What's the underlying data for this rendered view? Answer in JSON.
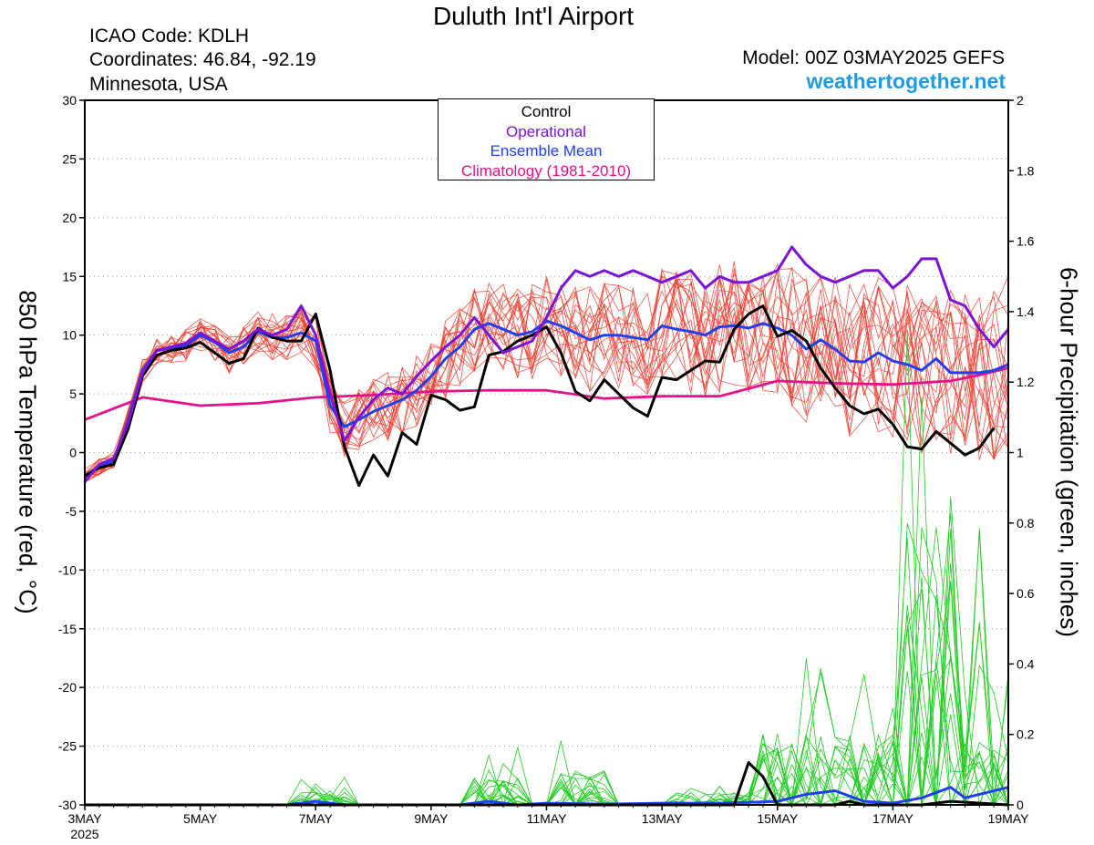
{
  "header": {
    "title": "Duluth Int'l Airport",
    "icao": "ICAO Code: KDLH",
    "coords": "Coordinates: 46.84, -92.19",
    "location": "Minnesota, USA",
    "model": "Model: 00Z 03MAY2025 GEFS",
    "website": "weathertogether.net"
  },
  "legend": {
    "control": "Control",
    "operational": "Operational",
    "mean": "Ensemble Mean",
    "climo": "Climatology (1981-2010)"
  },
  "colors": {
    "control": "#000000",
    "operational": "#7b14d6",
    "mean": "#2040ee",
    "climo": "#e8108a",
    "members_temp": "#ee3a2a",
    "members_precip": "#22cc22",
    "website": "#1e9be8"
  },
  "chart_data": {
    "type": "line",
    "ylabel": "850 hPa Temperature (red, °C)",
    "y2label": "6-hour Precipitation (green, inches)",
    "xlim": [
      0,
      16
    ],
    "ylim": [
      -30,
      30
    ],
    "y2lim": [
      0,
      2
    ],
    "y_ticks": [
      -30,
      -25,
      -20,
      -15,
      -10,
      -5,
      0,
      5,
      10,
      15,
      20,
      25,
      30
    ],
    "y2_ticks": [
      0,
      0.2,
      0.4,
      0.6,
      0.8,
      1,
      1.2,
      1.4,
      1.6,
      1.8,
      2
    ],
    "x_ticks": [
      {
        "day": 0,
        "label": "3MAY",
        "sub": "2025"
      },
      {
        "day": 2,
        "label": "5MAY"
      },
      {
        "day": 4,
        "label": "7MAY"
      },
      {
        "day": 6,
        "label": "9MAY"
      },
      {
        "day": 8,
        "label": "11MAY"
      },
      {
        "day": 10,
        "label": "13MAY"
      },
      {
        "day": 12,
        "label": "15MAY"
      },
      {
        "day": 14,
        "label": "17MAY"
      },
      {
        "day": 16,
        "label": "19MAY"
      }
    ],
    "temperature_series": [
      {
        "name": "Operational",
        "key": "operational",
        "points": [
          [
            0,
            -2.5
          ],
          [
            0.25,
            -1.0
          ],
          [
            0.5,
            -0.5
          ],
          [
            0.75,
            2.5
          ],
          [
            1.0,
            6.8
          ],
          [
            1.25,
            8.7
          ],
          [
            1.5,
            9.0
          ],
          [
            1.75,
            9.3
          ],
          [
            2.0,
            10.2
          ],
          [
            2.25,
            9.5
          ],
          [
            2.5,
            8.8
          ],
          [
            2.75,
            9.5
          ],
          [
            3.0,
            10.5
          ],
          [
            3.25,
            10.0
          ],
          [
            3.5,
            10.5
          ],
          [
            3.75,
            12.5
          ],
          [
            4.0,
            10.0
          ],
          [
            4.25,
            5.0
          ],
          [
            4.5,
            1.0
          ],
          [
            4.75,
            3.0
          ],
          [
            5.0,
            4.5
          ],
          [
            5.25,
            5.5
          ],
          [
            5.5,
            5.0
          ],
          [
            5.75,
            6.5
          ],
          [
            6.0,
            7.8
          ],
          [
            6.25,
            9.0
          ],
          [
            6.5,
            10.0
          ],
          [
            6.75,
            11.5
          ],
          [
            7.0,
            10.0
          ],
          [
            7.25,
            8.5
          ],
          [
            7.5,
            9.0
          ],
          [
            7.75,
            9.5
          ],
          [
            8.0,
            11.5
          ],
          [
            8.25,
            14.0
          ],
          [
            8.5,
            15.5
          ],
          [
            8.75,
            15.0
          ],
          [
            9.0,
            15.5
          ],
          [
            9.25,
            15.0
          ],
          [
            9.5,
            15.5
          ],
          [
            9.75,
            15.0
          ],
          [
            10.0,
            14.5
          ],
          [
            10.25,
            15.0
          ],
          [
            10.5,
            15.5
          ],
          [
            10.75,
            14.0
          ],
          [
            11.0,
            15.0
          ],
          [
            11.25,
            14.5
          ],
          [
            11.5,
            14.5
          ],
          [
            11.75,
            15.0
          ],
          [
            12.0,
            15.5
          ],
          [
            12.25,
            17.5
          ],
          [
            12.5,
            16.0
          ],
          [
            12.75,
            15.0
          ],
          [
            13.0,
            14.5
          ],
          [
            13.25,
            15.0
          ],
          [
            13.5,
            15.5
          ],
          [
            13.75,
            15.5
          ],
          [
            14.0,
            14.0
          ],
          [
            14.25,
            15.0
          ],
          [
            14.5,
            16.5
          ],
          [
            14.75,
            16.5
          ],
          [
            15.0,
            13.0
          ],
          [
            15.25,
            12.5
          ],
          [
            15.5,
            10.5
          ],
          [
            15.75,
            9.0
          ],
          [
            16.0,
            10.5
          ]
        ]
      },
      {
        "name": "Ensemble Mean",
        "key": "mean",
        "points": [
          [
            0,
            -2.0
          ],
          [
            0.25,
            -1.2
          ],
          [
            0.5,
            -0.7
          ],
          [
            0.75,
            2.7
          ],
          [
            1.0,
            7.0
          ],
          [
            1.25,
            8.7
          ],
          [
            1.5,
            8.9
          ],
          [
            1.75,
            9.1
          ],
          [
            2.0,
            10.0
          ],
          [
            2.25,
            9.4
          ],
          [
            2.5,
            8.5
          ],
          [
            2.75,
            9.0
          ],
          [
            3.0,
            10.3
          ],
          [
            3.25,
            9.8
          ],
          [
            3.5,
            9.8
          ],
          [
            3.75,
            10.2
          ],
          [
            4.0,
            9.5
          ],
          [
            4.25,
            4.0
          ],
          [
            4.5,
            2.2
          ],
          [
            4.75,
            2.8
          ],
          [
            5.0,
            3.5
          ],
          [
            5.25,
            4.0
          ],
          [
            5.5,
            4.5
          ],
          [
            5.75,
            5.3
          ],
          [
            6.0,
            6.5
          ],
          [
            6.25,
            8.0
          ],
          [
            6.5,
            9.0
          ],
          [
            6.75,
            10.5
          ],
          [
            7.0,
            11.0
          ],
          [
            7.25,
            10.5
          ],
          [
            7.5,
            10.0
          ],
          [
            7.75,
            10.3
          ],
          [
            8.0,
            11.2
          ],
          [
            8.25,
            10.8
          ],
          [
            8.5,
            10.2
          ],
          [
            8.75,
            9.6
          ],
          [
            9.0,
            10.0
          ],
          [
            9.25,
            10.0
          ],
          [
            9.5,
            9.8
          ],
          [
            9.75,
            9.6
          ],
          [
            10.0,
            10.8
          ],
          [
            10.25,
            10.5
          ],
          [
            10.5,
            10.3
          ],
          [
            10.75,
            10.0
          ],
          [
            11.0,
            10.7
          ],
          [
            11.25,
            10.8
          ],
          [
            11.5,
            10.6
          ],
          [
            11.75,
            11.0
          ],
          [
            12.0,
            10.6
          ],
          [
            12.25,
            10.0
          ],
          [
            12.5,
            8.8
          ],
          [
            12.75,
            9.6
          ],
          [
            13.0,
            8.8
          ],
          [
            13.25,
            7.8
          ],
          [
            13.5,
            7.7
          ],
          [
            13.75,
            8.5
          ],
          [
            14.0,
            7.8
          ],
          [
            14.25,
            7.5
          ],
          [
            14.5,
            7.0
          ],
          [
            14.75,
            8.0
          ],
          [
            15.0,
            6.8
          ],
          [
            15.25,
            6.8
          ],
          [
            15.5,
            6.8
          ],
          [
            15.75,
            7.0
          ],
          [
            16.0,
            7.5
          ]
        ]
      },
      {
        "name": "Control",
        "key": "control",
        "points": [
          [
            0,
            -2.0
          ],
          [
            0.25,
            -1.3
          ],
          [
            0.5,
            -1.0
          ],
          [
            0.75,
            2.0
          ],
          [
            1.0,
            6.5
          ],
          [
            1.25,
            8.3
          ],
          [
            1.5,
            8.7
          ],
          [
            1.75,
            8.9
          ],
          [
            2.0,
            9.4
          ],
          [
            2.25,
            8.5
          ],
          [
            2.5,
            7.6
          ],
          [
            2.75,
            8.0
          ],
          [
            3.0,
            10.6
          ],
          [
            3.25,
            9.8
          ],
          [
            3.5,
            9.5
          ],
          [
            3.75,
            9.5
          ],
          [
            4.0,
            11.8
          ],
          [
            4.25,
            7.0
          ],
          [
            4.5,
            0.5
          ],
          [
            4.75,
            -2.8
          ],
          [
            5.0,
            -0.2
          ],
          [
            5.25,
            -2.0
          ],
          [
            5.5,
            1.7
          ],
          [
            5.75,
            0.7
          ],
          [
            6.0,
            4.9
          ],
          [
            6.25,
            4.5
          ],
          [
            6.5,
            3.6
          ],
          [
            6.75,
            3.9
          ],
          [
            7.0,
            8.3
          ],
          [
            7.25,
            8.6
          ],
          [
            7.5,
            9.5
          ],
          [
            7.75,
            10.0
          ],
          [
            8.0,
            10.7
          ],
          [
            8.25,
            8.5
          ],
          [
            8.5,
            5.2
          ],
          [
            8.75,
            4.4
          ],
          [
            9.0,
            6.2
          ],
          [
            9.25,
            5.0
          ],
          [
            9.5,
            3.8
          ],
          [
            9.75,
            3.1
          ],
          [
            10.0,
            6.4
          ],
          [
            10.25,
            6.2
          ],
          [
            10.5,
            7.0
          ],
          [
            10.75,
            7.8
          ],
          [
            11.0,
            7.7
          ],
          [
            11.25,
            10.5
          ],
          [
            11.5,
            11.8
          ],
          [
            11.75,
            12.5
          ],
          [
            12.0,
            9.9
          ],
          [
            12.25,
            10.4
          ],
          [
            12.5,
            9.5
          ],
          [
            12.75,
            7.2
          ],
          [
            13.0,
            5.5
          ],
          [
            13.25,
            4.0
          ],
          [
            13.5,
            3.3
          ],
          [
            13.75,
            3.7
          ],
          [
            14.0,
            2.4
          ],
          [
            14.25,
            0.5
          ],
          [
            14.5,
            0.3
          ],
          [
            14.75,
            1.8
          ],
          [
            15.0,
            0.8
          ],
          [
            15.25,
            -0.2
          ],
          [
            15.5,
            0.4
          ],
          [
            15.75,
            2.1
          ]
        ]
      },
      {
        "name": "Climatology (1981-2010)",
        "key": "climo",
        "points": [
          [
            0,
            2.8
          ],
          [
            1.0,
            4.7
          ],
          [
            2.0,
            4.0
          ],
          [
            3.0,
            4.2
          ],
          [
            4.0,
            4.7
          ],
          [
            5.0,
            4.9
          ],
          [
            6.0,
            5.2
          ],
          [
            7.0,
            5.3
          ],
          [
            8.0,
            5.3
          ],
          [
            9.0,
            4.6
          ],
          [
            10.0,
            4.8
          ],
          [
            11.0,
            4.8
          ],
          [
            12.0,
            6.1
          ],
          [
            13.0,
            5.9
          ],
          [
            14.0,
            5.8
          ],
          [
            15.0,
            6.1
          ],
          [
            15.5,
            6.6
          ],
          [
            16.0,
            7.2
          ]
        ]
      }
    ],
    "precipitation_series": [
      {
        "name": "Ensemble Mean",
        "key": "mean",
        "points": [
          [
            0,
            0
          ],
          [
            3.5,
            0
          ],
          [
            4.0,
            0.01
          ],
          [
            4.5,
            0
          ],
          [
            6.5,
            0
          ],
          [
            7.0,
            0.01
          ],
          [
            7.5,
            0
          ],
          [
            8.0,
            0.005
          ],
          [
            9.0,
            0.002
          ],
          [
            10.0,
            0.005
          ],
          [
            11.0,
            0.005
          ],
          [
            11.5,
            0.007
          ],
          [
            12.0,
            0.01
          ],
          [
            12.5,
            0.03
          ],
          [
            13.0,
            0.04
          ],
          [
            13.5,
            0.01
          ],
          [
            14.0,
            0.005
          ],
          [
            14.5,
            0.02
          ],
          [
            15.0,
            0.05
          ],
          [
            15.25,
            0.02
          ],
          [
            15.5,
            0.03
          ],
          [
            16.0,
            0.05
          ]
        ]
      },
      {
        "name": "Control",
        "key": "control",
        "points": [
          [
            0,
            0
          ],
          [
            11.25,
            0
          ],
          [
            11.5,
            0.12
          ],
          [
            11.75,
            0.08
          ],
          [
            12.0,
            0
          ],
          [
            13.0,
            0
          ],
          [
            13.25,
            0.01
          ],
          [
            13.5,
            0
          ],
          [
            14.5,
            0
          ],
          [
            15.0,
            0.01
          ],
          [
            16.0,
            0
          ]
        ]
      }
    ]
  }
}
